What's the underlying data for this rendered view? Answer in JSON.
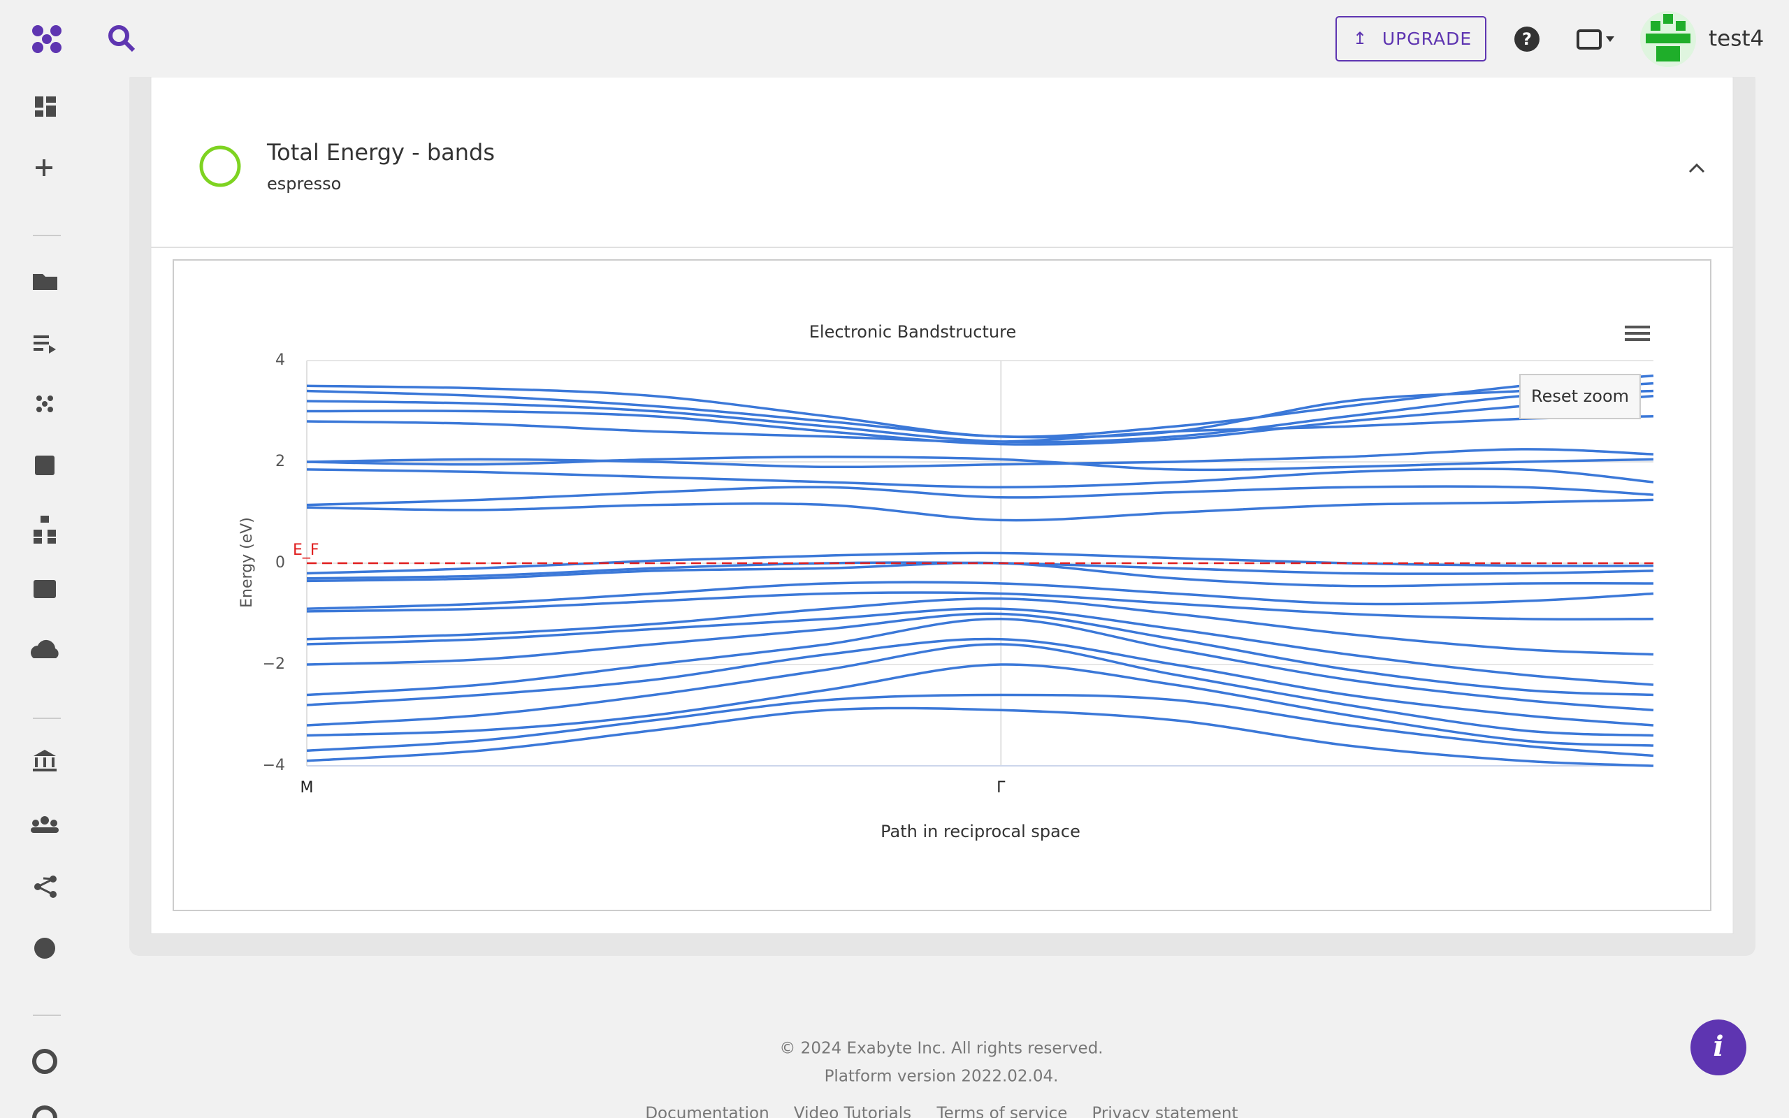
{
  "header": {
    "upgrade": "UPGRADE",
    "user": "test4"
  },
  "card": {
    "title": "Total Energy - bands",
    "subtitle": "espresso"
  },
  "chart_data": {
    "type": "line",
    "title": "Electronic Bandstructure",
    "x_label": "Path in reciprocal space",
    "y_label": "Energy (eV)",
    "color": "#3b78d8",
    "x": [
      0,
      0.25,
      0.5,
      0.75,
      1,
      1.25,
      1.5,
      1.75,
      1.94
    ],
    "xlim": [
      0,
      1.94
    ],
    "xticks": [
      {
        "value": 0,
        "label": "M"
      },
      {
        "value": 1,
        "label": "Γ"
      }
    ],
    "ylim": [
      -4,
      4
    ],
    "yticks": [
      {
        "value": -4,
        "label": "−4"
      },
      {
        "value": -2,
        "label": "−2"
      },
      0,
      2,
      4
    ],
    "fermi_level": 0,
    "fermi_label": "E_F",
    "reset_zoom": "Reset zoom",
    "series": [
      {
        "values": [
          3.5,
          3.45,
          3.3,
          2.9,
          2.5,
          2.7,
          3.1,
          3.5,
          3.7
        ]
      },
      {
        "values": [
          3.4,
          3.3,
          3.1,
          2.8,
          2.5,
          2.6,
          3.2,
          3.4,
          3.55
        ]
      },
      {
        "values": [
          3.2,
          3.15,
          3.0,
          2.7,
          2.4,
          2.5,
          2.9,
          3.3,
          3.4
        ]
      },
      {
        "values": [
          3.0,
          3.0,
          2.9,
          2.6,
          2.35,
          2.45,
          2.8,
          3.1,
          3.3
        ]
      },
      {
        "values": [
          2.8,
          2.75,
          2.6,
          2.5,
          2.4,
          2.6,
          2.7,
          2.85,
          2.9
        ]
      },
      {
        "values": [
          2.0,
          2.05,
          2.0,
          1.9,
          1.95,
          2.0,
          2.1,
          2.25,
          2.15
        ]
      },
      {
        "values": [
          2.0,
          1.95,
          2.05,
          2.1,
          2.05,
          1.85,
          1.9,
          2.0,
          2.05
        ]
      },
      {
        "values": [
          1.85,
          1.8,
          1.7,
          1.6,
          1.5,
          1.6,
          1.8,
          1.85,
          1.6
        ]
      },
      {
        "values": [
          1.15,
          1.25,
          1.4,
          1.5,
          1.3,
          1.4,
          1.5,
          1.5,
          1.35
        ]
      },
      {
        "values": [
          1.1,
          1.05,
          1.15,
          1.15,
          0.85,
          1.0,
          1.15,
          1.2,
          1.25
        ]
      },
      {
        "values": [
          -0.2,
          -0.1,
          0.05,
          0.15,
          0.2,
          0.1,
          0.0,
          -0.05,
          -0.05
        ]
      },
      {
        "values": [
          -0.3,
          -0.25,
          -0.1,
          0.0,
          0.0,
          -0.1,
          -0.2,
          -0.2,
          -0.15
        ]
      },
      {
        "values": [
          -0.35,
          -0.3,
          -0.15,
          -0.1,
          0.0,
          -0.3,
          -0.45,
          -0.4,
          -0.4
        ]
      },
      {
        "values": [
          -0.9,
          -0.8,
          -0.6,
          -0.4,
          -0.4,
          -0.6,
          -0.8,
          -0.75,
          -0.6
        ]
      },
      {
        "values": [
          -0.95,
          -0.9,
          -0.75,
          -0.6,
          -0.6,
          -0.8,
          -1.0,
          -1.1,
          -1.1
        ]
      },
      {
        "values": [
          -1.5,
          -1.4,
          -1.2,
          -0.9,
          -0.7,
          -1.0,
          -1.4,
          -1.7,
          -1.8
        ]
      },
      {
        "values": [
          -1.6,
          -1.5,
          -1.3,
          -1.1,
          -0.9,
          -1.3,
          -1.8,
          -2.2,
          -2.4
        ]
      },
      {
        "values": [
          -2.0,
          -1.9,
          -1.6,
          -1.3,
          -1.0,
          -1.5,
          -2.1,
          -2.5,
          -2.6
        ]
      },
      {
        "values": [
          -2.6,
          -2.4,
          -2.0,
          -1.6,
          -1.1,
          -1.7,
          -2.3,
          -2.7,
          -2.9
        ]
      },
      {
        "values": [
          -2.8,
          -2.6,
          -2.3,
          -1.8,
          -1.5,
          -2.0,
          -2.6,
          -3.0,
          -3.2
        ]
      },
      {
        "values": [
          -3.2,
          -3.0,
          -2.6,
          -2.1,
          -1.6,
          -2.2,
          -2.8,
          -3.3,
          -3.4
        ]
      },
      {
        "values": [
          -3.4,
          -3.3,
          -3.0,
          -2.5,
          -2.0,
          -2.4,
          -3.0,
          -3.5,
          -3.6
        ]
      },
      {
        "values": [
          -3.7,
          -3.5,
          -3.1,
          -2.7,
          -2.6,
          -2.7,
          -3.2,
          -3.6,
          -3.8
        ]
      },
      {
        "values": [
          -3.9,
          -3.7,
          -3.3,
          -2.9,
          -2.9,
          -3.1,
          -3.6,
          -3.9,
          -4.0
        ]
      }
    ]
  },
  "footer": {
    "copyright": "© 2024 Exabyte Inc. All rights reserved.",
    "version": "Platform version 2022.02.04.",
    "links": [
      "Documentation",
      "Video Tutorials",
      "Terms of service",
      "Privacy statement"
    ]
  }
}
